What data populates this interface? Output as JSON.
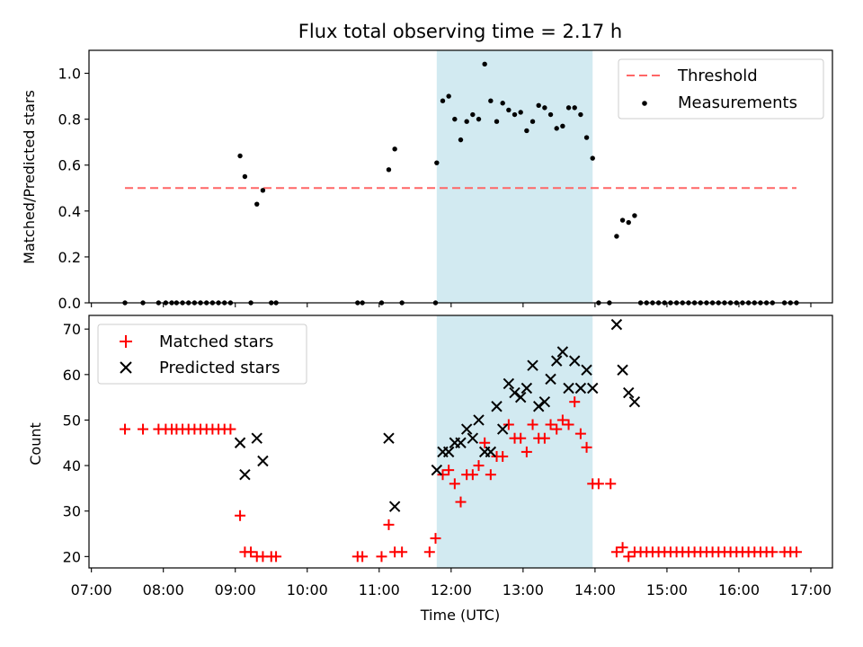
{
  "figure": {
    "title": "Flux total observing time = 2.17 h"
  },
  "chart_data": [
    {
      "type": "scatter",
      "title": "Flux total observing time = 2.17 h",
      "xlabel": "",
      "ylabel": "Matched/Predicted stars",
      "ylim": [
        0,
        1.1
      ],
      "yticks": [
        "0.0",
        "0.2",
        "0.4",
        "0.6",
        "0.8",
        "1.0"
      ],
      "xlim": [
        "06:58",
        "17:18"
      ],
      "x_tick_values": [
        "07:00",
        "08:00",
        "09:00",
        "10:00",
        "11:00",
        "12:00",
        "13:00",
        "14:00",
        "15:00",
        "16:00",
        "17:00"
      ],
      "x_tick_labels_visible": false,
      "shaded_span": {
        "x": [
          "11:48",
          "13:58"
        ],
        "color": "#add8e6"
      },
      "threshold": {
        "name": "Threshold",
        "y": 0.5,
        "x": [
          "07:28",
          "16:48"
        ],
        "color": "#ff6666",
        "style": "dashed"
      },
      "series": [
        {
          "name": "Measurements",
          "marker": "dot",
          "color": "#000000",
          "points": [
            [
              "07:28",
              0
            ],
            [
              "07:43",
              0
            ],
            [
              "07:56",
              0
            ],
            [
              "08:02",
              0
            ],
            [
              "08:07",
              0
            ],
            [
              "08:11",
              0
            ],
            [
              "08:16",
              0
            ],
            [
              "08:21",
              0
            ],
            [
              "08:26",
              0
            ],
            [
              "08:31",
              0
            ],
            [
              "08:36",
              0
            ],
            [
              "08:41",
              0
            ],
            [
              "08:46",
              0
            ],
            [
              "08:51",
              0
            ],
            [
              "08:56",
              0
            ],
            [
              "09:04",
              0.64
            ],
            [
              "09:08",
              0.55
            ],
            [
              "09:13",
              0
            ],
            [
              "09:18",
              0.43
            ],
            [
              "09:23",
              0.49
            ],
            [
              "09:30",
              0
            ],
            [
              "09:34",
              0
            ],
            [
              "10:42",
              0
            ],
            [
              "10:46",
              0
            ],
            [
              "11:02",
              0
            ],
            [
              "11:08",
              0.58
            ],
            [
              "11:13",
              0.67
            ],
            [
              "11:19",
              0
            ],
            [
              "11:47",
              0
            ],
            [
              "11:48",
              0.61
            ],
            [
              "11:53",
              0.88
            ],
            [
              "11:58",
              0.9
            ],
            [
              "12:03",
              0.8
            ],
            [
              "12:08",
              0.71
            ],
            [
              "12:13",
              0.79
            ],
            [
              "12:18",
              0.82
            ],
            [
              "12:23",
              0.8
            ],
            [
              "12:28",
              1.04
            ],
            [
              "12:33",
              0.88
            ],
            [
              "12:38",
              0.79
            ],
            [
              "12:43",
              0.87
            ],
            [
              "12:48",
              0.84
            ],
            [
              "12:53",
              0.82
            ],
            [
              "12:58",
              0.83
            ],
            [
              "13:03",
              0.75
            ],
            [
              "13:08",
              0.79
            ],
            [
              "13:13",
              0.86
            ],
            [
              "13:18",
              0.85
            ],
            [
              "13:23",
              0.82
            ],
            [
              "13:28",
              0.76
            ],
            [
              "13:33",
              0.77
            ],
            [
              "13:38",
              0.85
            ],
            [
              "13:43",
              0.85
            ],
            [
              "13:48",
              0.82
            ],
            [
              "13:53",
              0.72
            ],
            [
              "13:58",
              0.63
            ],
            [
              "14:03",
              0
            ],
            [
              "14:12",
              0
            ],
            [
              "14:18",
              0.29
            ],
            [
              "14:23",
              0.36
            ],
            [
              "14:28",
              0.35
            ],
            [
              "14:33",
              0.38
            ],
            [
              "14:38",
              0
            ],
            [
              "14:43",
              0
            ],
            [
              "14:48",
              0
            ],
            [
              "14:53",
              0
            ],
            [
              "14:58",
              0
            ],
            [
              "15:03",
              0
            ],
            [
              "15:08",
              0
            ],
            [
              "15:13",
              0
            ],
            [
              "15:18",
              0
            ],
            [
              "15:23",
              0
            ],
            [
              "15:28",
              0
            ],
            [
              "15:33",
              0
            ],
            [
              "15:38",
              0
            ],
            [
              "15:43",
              0
            ],
            [
              "15:48",
              0
            ],
            [
              "15:53",
              0
            ],
            [
              "15:58",
              0
            ],
            [
              "16:03",
              0
            ],
            [
              "16:08",
              0
            ],
            [
              "16:13",
              0
            ],
            [
              "16:18",
              0
            ],
            [
              "16:23",
              0
            ],
            [
              "16:28",
              0
            ],
            [
              "16:38",
              0
            ],
            [
              "16:43",
              0
            ],
            [
              "16:48",
              0
            ]
          ]
        }
      ],
      "legend": {
        "placement": "top-right",
        "entries": [
          "Threshold",
          "Measurements"
        ]
      }
    },
    {
      "type": "scatter",
      "title": "",
      "xlabel": "Time (UTC)",
      "ylabel": "Count",
      "ylim": [
        17.5,
        73
      ],
      "yticks": [
        "20",
        "30",
        "40",
        "50",
        "60",
        "70"
      ],
      "xlim": [
        "06:58",
        "17:18"
      ],
      "x_tick_values": [
        "07:00",
        "08:00",
        "09:00",
        "10:00",
        "11:00",
        "12:00",
        "13:00",
        "14:00",
        "15:00",
        "16:00",
        "17:00"
      ],
      "x_tick_labels": [
        "07:00",
        "08:00",
        "09:00",
        "10:00",
        "11:00",
        "12:00",
        "13:00",
        "14:00",
        "15:00",
        "16:00",
        "17:00"
      ],
      "shaded_span": {
        "x": [
          "11:48",
          "13:58"
        ],
        "color": "#add8e6"
      },
      "series": [
        {
          "name": "Matched stars",
          "marker": "plus",
          "color": "#ff0000",
          "points": [
            [
              "07:28",
              48
            ],
            [
              "07:43",
              48
            ],
            [
              "07:56",
              48
            ],
            [
              "08:02",
              48
            ],
            [
              "08:07",
              48
            ],
            [
              "08:11",
              48
            ],
            [
              "08:16",
              48
            ],
            [
              "08:21",
              48
            ],
            [
              "08:26",
              48
            ],
            [
              "08:31",
              48
            ],
            [
              "08:36",
              48
            ],
            [
              "08:41",
              48
            ],
            [
              "08:46",
              48
            ],
            [
              "08:51",
              48
            ],
            [
              "08:56",
              48
            ],
            [
              "09:04",
              29
            ],
            [
              "09:08",
              21
            ],
            [
              "09:13",
              21
            ],
            [
              "09:18",
              20
            ],
            [
              "09:23",
              20
            ],
            [
              "09:30",
              20
            ],
            [
              "09:34",
              20
            ],
            [
              "10:42",
              20
            ],
            [
              "10:46",
              20
            ],
            [
              "11:02",
              20
            ],
            [
              "11:08",
              27
            ],
            [
              "11:13",
              21
            ],
            [
              "11:19",
              21
            ],
            [
              "11:42",
              21
            ],
            [
              "11:47",
              24
            ],
            [
              "11:53",
              38
            ],
            [
              "11:58",
              39
            ],
            [
              "12:03",
              36
            ],
            [
              "12:08",
              32
            ],
            [
              "12:13",
              38
            ],
            [
              "12:18",
              38
            ],
            [
              "12:23",
              40
            ],
            [
              "12:28",
              45
            ],
            [
              "12:33",
              38
            ],
            [
              "12:38",
              42
            ],
            [
              "12:43",
              42
            ],
            [
              "12:48",
              49
            ],
            [
              "12:53",
              46
            ],
            [
              "12:58",
              46
            ],
            [
              "13:03",
              43
            ],
            [
              "13:08",
              49
            ],
            [
              "13:13",
              46
            ],
            [
              "13:18",
              46
            ],
            [
              "13:23",
              49
            ],
            [
              "13:28",
              48
            ],
            [
              "13:33",
              50
            ],
            [
              "13:38",
              49
            ],
            [
              "13:43",
              54
            ],
            [
              "13:48",
              47
            ],
            [
              "13:53",
              44
            ],
            [
              "13:58",
              36
            ],
            [
              "14:03",
              36
            ],
            [
              "14:13",
              36
            ],
            [
              "14:18",
              21
            ],
            [
              "14:23",
              22
            ],
            [
              "14:28",
              20
            ],
            [
              "14:33",
              21
            ],
            [
              "14:38",
              21
            ],
            [
              "14:43",
              21
            ],
            [
              "14:48",
              21
            ],
            [
              "14:53",
              21
            ],
            [
              "14:58",
              21
            ],
            [
              "15:03",
              21
            ],
            [
              "15:08",
              21
            ],
            [
              "15:13",
              21
            ],
            [
              "15:18",
              21
            ],
            [
              "15:23",
              21
            ],
            [
              "15:28",
              21
            ],
            [
              "15:33",
              21
            ],
            [
              "15:38",
              21
            ],
            [
              "15:43",
              21
            ],
            [
              "15:48",
              21
            ],
            [
              "15:53",
              21
            ],
            [
              "15:58",
              21
            ],
            [
              "16:03",
              21
            ],
            [
              "16:08",
              21
            ],
            [
              "16:13",
              21
            ],
            [
              "16:18",
              21
            ],
            [
              "16:23",
              21
            ],
            [
              "16:28",
              21
            ],
            [
              "16:38",
              21
            ],
            [
              "16:43",
              21
            ],
            [
              "16:48",
              21
            ]
          ]
        },
        {
          "name": "Predicted stars",
          "marker": "cross",
          "color": "#000000",
          "points": [
            [
              "09:04",
              45
            ],
            [
              "09:08",
              38
            ],
            [
              "09:18",
              46
            ],
            [
              "09:23",
              41
            ],
            [
              "11:08",
              46
            ],
            [
              "11:13",
              31
            ],
            [
              "11:48",
              39
            ],
            [
              "11:53",
              43
            ],
            [
              "11:58",
              43
            ],
            [
              "12:03",
              45
            ],
            [
              "12:08",
              45
            ],
            [
              "12:13",
              48
            ],
            [
              "12:18",
              46
            ],
            [
              "12:23",
              50
            ],
            [
              "12:28",
              43
            ],
            [
              "12:33",
              43
            ],
            [
              "12:38",
              53
            ],
            [
              "12:43",
              48
            ],
            [
              "12:48",
              58
            ],
            [
              "12:53",
              56
            ],
            [
              "12:58",
              55
            ],
            [
              "13:03",
              57
            ],
            [
              "13:08",
              62
            ],
            [
              "13:13",
              53
            ],
            [
              "13:18",
              54
            ],
            [
              "13:23",
              59
            ],
            [
              "13:28",
              63
            ],
            [
              "13:33",
              65
            ],
            [
              "13:38",
              57
            ],
            [
              "13:43",
              63
            ],
            [
              "13:48",
              57
            ],
            [
              "13:53",
              61
            ],
            [
              "13:58",
              57
            ],
            [
              "14:18",
              71
            ],
            [
              "14:23",
              61
            ],
            [
              "14:28",
              56
            ],
            [
              "14:33",
              54
            ]
          ]
        }
      ],
      "legend": {
        "placement": "top-left",
        "entries": [
          "Matched stars",
          "Predicted stars"
        ]
      }
    }
  ]
}
